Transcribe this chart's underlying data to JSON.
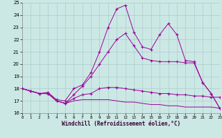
{
  "xlabel": "Windchill (Refroidissement éolien,°C)",
  "xlim": [
    0,
    23
  ],
  "ylim": [
    16,
    25
  ],
  "yticks": [
    16,
    17,
    18,
    19,
    20,
    21,
    22,
    23,
    24,
    25
  ],
  "xticks": [
    0,
    1,
    2,
    3,
    4,
    5,
    6,
    7,
    8,
    9,
    10,
    11,
    12,
    13,
    14,
    15,
    16,
    17,
    18,
    19,
    20,
    21,
    22,
    23
  ],
  "background_color": "#cce8e4",
  "grid_color": "#aacccc",
  "line_color": "#990099",
  "line1_y": [
    18.0,
    17.8,
    17.6,
    17.6,
    17.0,
    16.8,
    17.0,
    17.1,
    17.1,
    17.1,
    17.1,
    17.0,
    16.9,
    16.9,
    16.8,
    16.7,
    16.7,
    16.6,
    16.6,
    16.5,
    16.5,
    16.5,
    16.5,
    16.4
  ],
  "line2_y": [
    18.0,
    17.8,
    17.6,
    17.6,
    17.0,
    16.8,
    17.2,
    17.5,
    17.6,
    18.0,
    18.1,
    18.1,
    18.0,
    17.9,
    17.8,
    17.7,
    17.6,
    17.6,
    17.5,
    17.5,
    17.4,
    17.4,
    17.3,
    17.3
  ],
  "line3_y": [
    18.0,
    17.8,
    17.6,
    17.6,
    17.0,
    16.8,
    17.5,
    18.2,
    19.0,
    20.0,
    21.0,
    22.0,
    22.5,
    21.5,
    20.5,
    20.3,
    20.2,
    20.2,
    20.2,
    20.1,
    20.1,
    18.5,
    17.6,
    16.4
  ],
  "line4_y": [
    18.0,
    17.8,
    17.6,
    17.7,
    17.1,
    17.0,
    18.0,
    18.3,
    19.3,
    21.0,
    23.0,
    24.5,
    24.8,
    22.6,
    21.4,
    21.2,
    22.4,
    23.3,
    22.4,
    20.3,
    20.2,
    18.5,
    17.6,
    16.4
  ],
  "x": [
    0,
    1,
    2,
    3,
    4,
    5,
    6,
    7,
    8,
    9,
    10,
    11,
    12,
    13,
    14,
    15,
    16,
    17,
    18,
    19,
    20,
    21,
    22,
    23
  ]
}
